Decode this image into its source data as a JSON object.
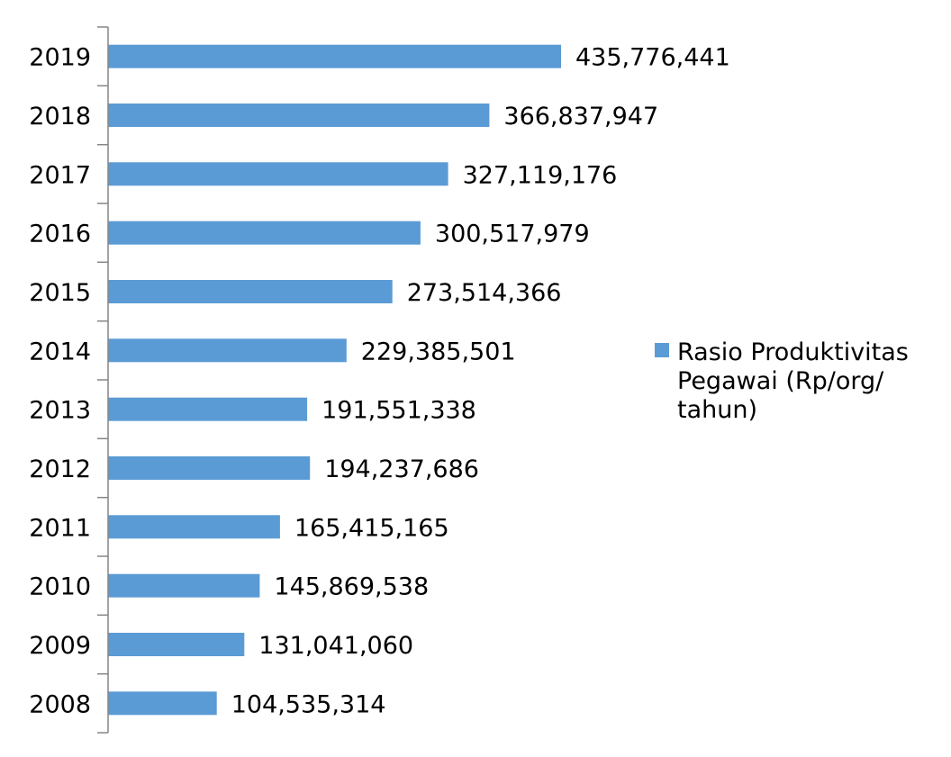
{
  "chart_data": {
    "type": "bar",
    "orientation": "horizontal",
    "categories": [
      "2019",
      "2018",
      "2017",
      "2016",
      "2015",
      "2014",
      "2013",
      "2012",
      "2011",
      "2010",
      "2009",
      "2008"
    ],
    "series": [
      {
        "name": "Rasio Produktivitas Pegawai (Rp/org/ tahun)",
        "values": [
          435776441,
          366837947,
          327119176,
          300517979,
          273514366,
          229385501,
          191551338,
          194237686,
          165415165,
          145869538,
          131041060,
          104535314
        ],
        "value_labels": [
          "435,776,441",
          "366,837,947",
          "327,119,176",
          "300,517,979",
          "273,514,366",
          "229,385,501",
          "191,551,338",
          "194,237,686",
          "165,415,165",
          "145,869,538",
          "131,041,060",
          "104,535,314"
        ]
      }
    ],
    "legend": {
      "position": "right",
      "lines": [
        "Rasio Produktivitas",
        "Pegawai (Rp/org/",
        "tahun)"
      ]
    },
    "bar_color": "#5B9BD5",
    "axis_color": "#868686",
    "gridlines": false
  }
}
